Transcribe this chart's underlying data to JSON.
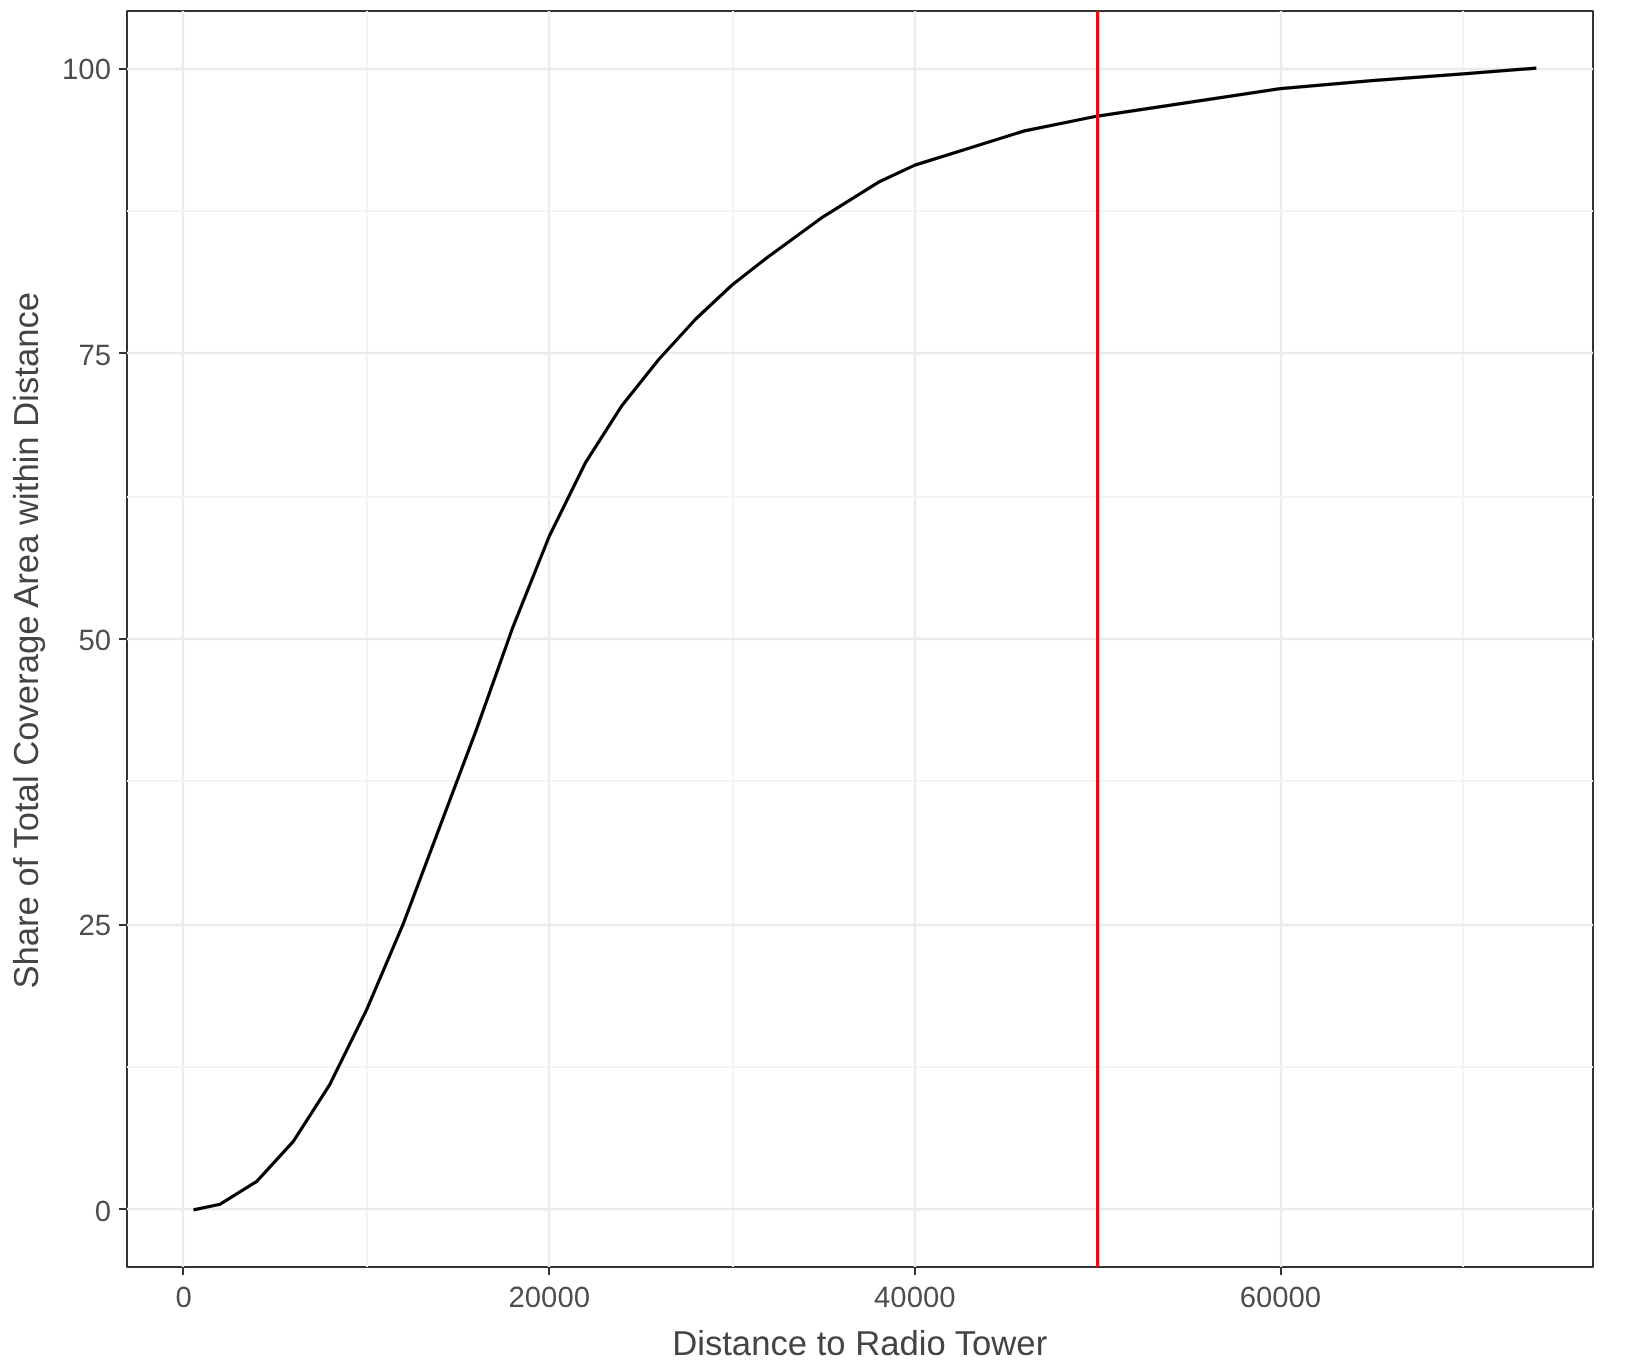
{
  "chart_data": {
    "type": "line",
    "xlabel": "Distance to Radio Tower",
    "ylabel": "Share of Total Coverage Area within Distance",
    "x": [
      540,
      2000,
      4000,
      6000,
      8000,
      10000,
      12000,
      14000,
      16000,
      18000,
      20000,
      22000,
      24000,
      26000,
      28000,
      30000,
      32000,
      35000,
      38000,
      40000,
      43000,
      46000,
      50000,
      55000,
      60000,
      65000,
      70000,
      74000
    ],
    "series": [
      {
        "color": "#000000",
        "values": [
          0,
          0.5,
          2.5,
          6,
          11,
          17.5,
          25,
          33.5,
          42,
          51,
          59,
          65.5,
          70.5,
          74.5,
          78,
          81,
          83.5,
          87,
          90,
          91.5,
          93,
          94.5,
          95.8,
          97,
          98.2,
          98.9,
          99.5,
          100
        ]
      }
    ],
    "xlim": [
      -3100,
      77100
    ],
    "ylim": [
      -5,
      105
    ],
    "xticks": [
      0,
      20000,
      40000,
      60000
    ],
    "yticks": [
      0,
      25,
      50,
      75,
      100
    ],
    "ref_lines": [
      {
        "axis": "x",
        "value": 50000,
        "color": "#ff0000"
      }
    ],
    "grid": true,
    "line_style": "solid"
  }
}
